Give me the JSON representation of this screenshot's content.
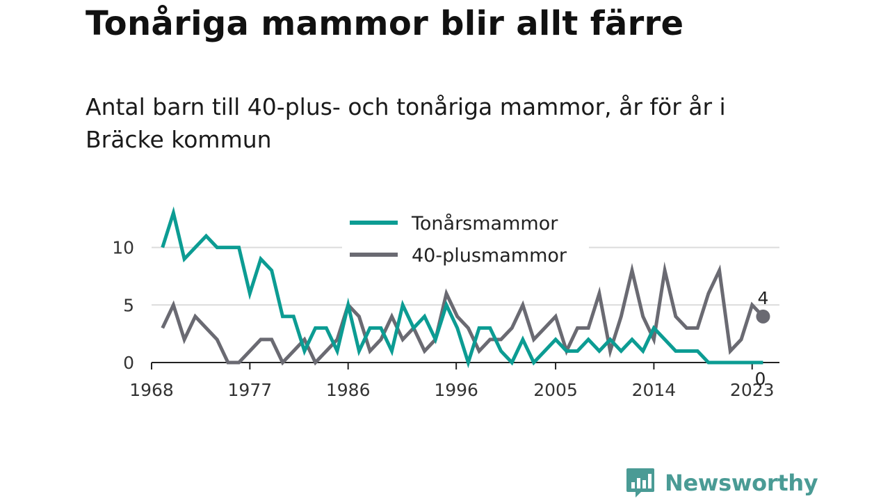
{
  "header": {
    "title": "Tonåriga mammor blir allt färre",
    "subtitle": "Antal barn till 40-plus- och tonåriga mammor, år för år i Bräcke kommun"
  },
  "brand": {
    "name": "Newsworthy",
    "color": "#4a9b95"
  },
  "chart_data": {
    "type": "line",
    "title": "",
    "xlabel": "",
    "ylabel": "",
    "x": [
      1969,
      1970,
      1971,
      1972,
      1973,
      1974,
      1975,
      1976,
      1977,
      1978,
      1979,
      1980,
      1981,
      1982,
      1983,
      1984,
      1985,
      1986,
      1987,
      1988,
      1989,
      1990,
      1991,
      1992,
      1993,
      1994,
      1995,
      1996,
      1997,
      1998,
      1999,
      2000,
      2001,
      2002,
      2003,
      2004,
      2005,
      2006,
      2007,
      2008,
      2009,
      2010,
      2011,
      2012,
      2013,
      2014,
      2015,
      2016,
      2017,
      2018,
      2019,
      2020,
      2021,
      2022,
      2023,
      2024
    ],
    "x_ticks": [
      "1968",
      "1977",
      "1986",
      "1996",
      "2005",
      "2014",
      "2023"
    ],
    "x_tick_values": [
      1968,
      1977,
      1986,
      1995.9,
      2005,
      2014,
      2023
    ],
    "y_ticks": [
      "0",
      "5",
      "10"
    ],
    "y_tick_values": [
      0,
      5,
      10
    ],
    "xlim": [
      1968,
      2025.5
    ],
    "ylim": [
      0,
      13
    ],
    "grid": true,
    "legend_position": "top-center",
    "series": [
      {
        "name": "Tonårsmammor",
        "color": "#0c9c93",
        "values": [
          10,
          13,
          9,
          10,
          11,
          10,
          10,
          10,
          6,
          9,
          8,
          4,
          4,
          1,
          3,
          3,
          1,
          5,
          1,
          3,
          3,
          1,
          5,
          3,
          4,
          2,
          5,
          3,
          0,
          3,
          3,
          1,
          0,
          2,
          0,
          1,
          2,
          1,
          1,
          2,
          1,
          2,
          1,
          2,
          1,
          3,
          2,
          1,
          1,
          1,
          0,
          0,
          0,
          0,
          0,
          0
        ],
        "end_label": "0"
      },
      {
        "name": "40-plusmammor",
        "color": "#6a6a72",
        "values": [
          3,
          5,
          2,
          4,
          3,
          2,
          0,
          0,
          1,
          2,
          2,
          0,
          1,
          2,
          0,
          1,
          2,
          5,
          4,
          1,
          2,
          4,
          2,
          3,
          1,
          2,
          6,
          4,
          3,
          1,
          2,
          2,
          3,
          5,
          2,
          3,
          4,
          1,
          3,
          3,
          6,
          1,
          4,
          8,
          4,
          2,
          8,
          4,
          3,
          3,
          6,
          8,
          1,
          2,
          5,
          4
        ],
        "end_label": "4"
      }
    ]
  }
}
